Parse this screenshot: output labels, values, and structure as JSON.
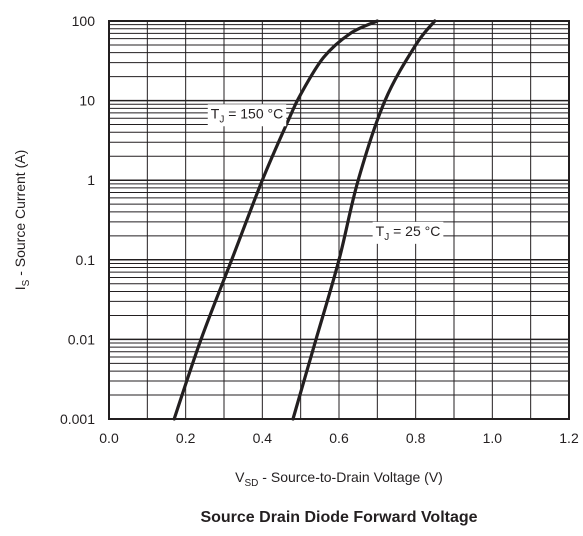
{
  "chart_data": {
    "type": "line",
    "title": "Source Drain Diode Forward Voltage",
    "xlabel": {
      "main": "V",
      "sub": "SD",
      "rest": " - Source-to-Drain Voltage (V)"
    },
    "ylabel": {
      "main": "I",
      "sub": "S",
      "rest": " - Source Current (A)"
    },
    "x_scale": "linear",
    "y_scale": "log",
    "xlim": [
      0.0,
      1.2
    ],
    "ylim": [
      0.001,
      100
    ],
    "x_ticks": [
      "0.0",
      "0.2",
      "0.4",
      "0.6",
      "0.8",
      "1.0",
      "1.2"
    ],
    "y_ticks": [
      "0.001",
      "0.01",
      "0.1",
      "1",
      "10",
      "100"
    ],
    "grid": true,
    "series": [
      {
        "name": "TJ = 150 °C",
        "label": {
          "main": "T",
          "sub": "J",
          "rest": " = 150 °C"
        },
        "points": [
          [
            0.17,
            0.001
          ],
          [
            0.24,
            0.01
          ],
          [
            0.32,
            0.1
          ],
          [
            0.4,
            1.0
          ],
          [
            0.47,
            6.0
          ],
          [
            0.5,
            12.0
          ],
          [
            0.56,
            35.0
          ],
          [
            0.63,
            70.0
          ],
          [
            0.7,
            100.0
          ]
        ]
      },
      {
        "name": "TJ = 25 °C",
        "label": {
          "main": "T",
          "sub": "J",
          "rest": " = 25 °C"
        },
        "points": [
          [
            0.48,
            0.001
          ],
          [
            0.54,
            0.01
          ],
          [
            0.6,
            0.1
          ],
          [
            0.65,
            1.0
          ],
          [
            0.72,
            10.0
          ],
          [
            0.8,
            50.0
          ],
          [
            0.85,
            100.0
          ]
        ]
      }
    ],
    "annotations": [
      {
        "series": 0,
        "x": 0.36,
        "y": 6.0
      },
      {
        "series": 1,
        "x": 0.78,
        "y": 0.2
      }
    ]
  }
}
